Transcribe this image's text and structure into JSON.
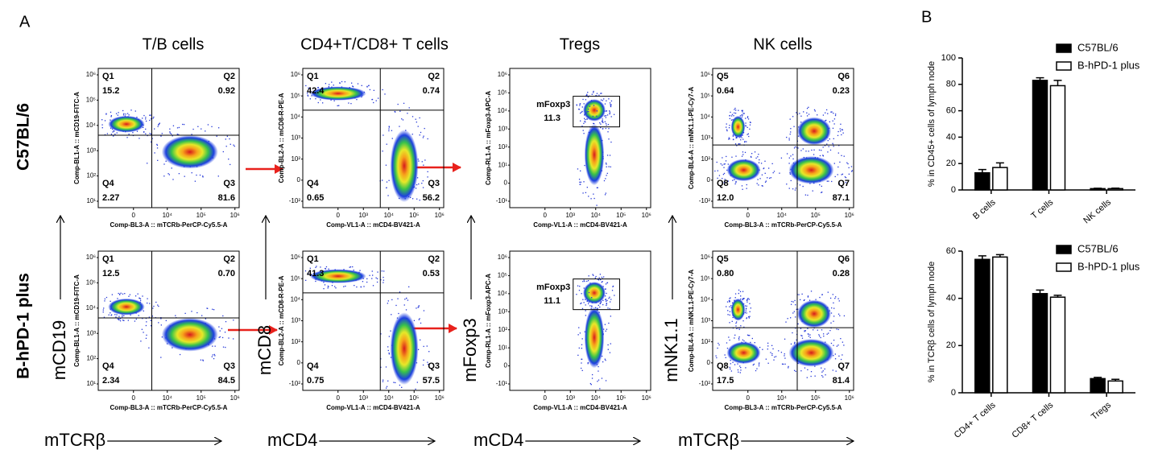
{
  "panel_a": {
    "label": "A",
    "row_labels": [
      "C57BL/6",
      "B-hPD-1 plus"
    ],
    "column_titles": [
      "T/B cells",
      "CD4+T/CD8+ T cells",
      "Tregs",
      "NK cells"
    ],
    "marker_axes": [
      {
        "y": "mCD19",
        "x": "mTCRβ"
      },
      {
        "y": "mCD8",
        "x": "mCD4"
      },
      {
        "y": "mFoxp3",
        "x": "mCD4"
      },
      {
        "y": "mNK1.1",
        "x": "mTCRβ"
      }
    ],
    "columns": [
      {
        "x_channel": "Comp-BL3-A :: mTCRb-PerCP-Cy5.5-A",
        "y_channel": "Comp-BL1-A :: mCD19-FITC-A",
        "xticks": [
          "0",
          "10⁴",
          "10⁵",
          "10⁶"
        ],
        "yticks": [
          "10⁶",
          "10⁵",
          "10⁴",
          "10³",
          "10²",
          "10¹"
        ]
      },
      {
        "x_channel": "Comp-VL1-A :: mCD4-BV421-A",
        "y_channel": "Comp-BL2-A :: mCD8-R-PE-A",
        "xticks": [
          "0",
          "10³",
          "10⁴",
          "10⁵",
          "10⁶"
        ],
        "yticks": [
          "10⁶",
          "10⁵",
          "10⁴",
          "10³",
          "10²",
          "0",
          "-10²"
        ]
      },
      {
        "x_channel": "Comp-VL1-A :: mCD4-BV421-A",
        "y_channel": "Comp-RL1-A :: mFoxp3-APC-A",
        "xticks": [
          "0",
          "10³",
          "10⁴",
          "10⁵",
          "10⁶"
        ],
        "yticks": [
          "10⁶",
          "10⁵",
          "10⁴",
          "10³",
          "10²",
          "10¹",
          "0",
          "-10¹"
        ]
      },
      {
        "x_channel": "Comp-BL3-A :: mTCRb-PerCP-Cy5.5-A",
        "y_channel": "Comp-BL4-A :: mNK1.1-PE-Cy7-A",
        "xticks": [
          "0",
          "10⁴",
          "10⁵",
          "10⁶"
        ],
        "yticks": [
          "10⁶",
          "10⁵",
          "10⁴",
          "10³",
          "10²",
          "0",
          "-10²"
        ]
      }
    ],
    "plots": [
      [
        {
          "quadrants": [
            {
              "name": "Q1",
              "value": "15.2"
            },
            {
              "name": "Q2",
              "value": "0.92"
            },
            {
              "name": "Q4",
              "value": "2.27"
            },
            {
              "name": "Q3",
              "value": "81.6"
            }
          ]
        },
        {
          "quadrants": [
            {
              "name": "Q1",
              "value": "42.4"
            },
            {
              "name": "Q2",
              "value": "0.74"
            },
            {
              "name": "Q4",
              "value": "0.65"
            },
            {
              "name": "Q3",
              "value": "56.2"
            }
          ]
        },
        {
          "gate": {
            "name": "mFoxp3",
            "value": "11.3"
          }
        },
        {
          "quadrants": [
            {
              "name": "Q5",
              "value": "0.64"
            },
            {
              "name": "Q6",
              "value": "0.23"
            },
            {
              "name": "Q8",
              "value": "12.0"
            },
            {
              "name": "Q7",
              "value": "87.1"
            }
          ]
        }
      ],
      [
        {
          "quadrants": [
            {
              "name": "Q1",
              "value": "12.5"
            },
            {
              "name": "Q2",
              "value": "0.70"
            },
            {
              "name": "Q4",
              "value": "2.34"
            },
            {
              "name": "Q3",
              "value": "84.5"
            }
          ]
        },
        {
          "quadrants": [
            {
              "name": "Q1",
              "value": "41.3"
            },
            {
              "name": "Q2",
              "value": "0.53"
            },
            {
              "name": "Q4",
              "value": "0.75"
            },
            {
              "name": "Q3",
              "value": "57.5"
            }
          ]
        },
        {
          "gate": {
            "name": "mFoxp3",
            "value": "11.1"
          }
        },
        {
          "quadrants": [
            {
              "name": "Q5",
              "value": "0.80"
            },
            {
              "name": "Q6",
              "value": "0.28"
            },
            {
              "name": "Q8",
              "value": "17.5"
            },
            {
              "name": "Q7",
              "value": "81.4"
            }
          ]
        }
      ]
    ]
  },
  "panel_b_label": "B",
  "chart_data": [
    {
      "type": "bar",
      "y_label": "% in CD45+ cells of lymph node",
      "categories": [
        "B cells",
        "T cells",
        "NK cells"
      ],
      "series": [
        {
          "name": "C57BL/6",
          "color": "#000000",
          "values": [
            13,
            83,
            1
          ],
          "errors": [
            2.5,
            2,
            0.3
          ]
        },
        {
          "name": "B-hPD-1 plus",
          "color": "#ffffff",
          "values": [
            17,
            79,
            1
          ],
          "errors": [
            3.5,
            4,
            0.4
          ]
        }
      ],
      "ylim": [
        0,
        100
      ],
      "yticks": [
        0,
        20,
        40,
        60,
        80,
        100
      ],
      "legend": "top-right"
    },
    {
      "type": "bar",
      "y_label": "% in TCRβ cells of lymph node",
      "categories": [
        "CD4+ T cells",
        "CD8+ T cells",
        "Tregs"
      ],
      "series": [
        {
          "name": "C57BL/6",
          "color": "#000000",
          "values": [
            56.5,
            42,
            6
          ],
          "errors": [
            1.5,
            1.5,
            0.5
          ]
        },
        {
          "name": "B-hPD-1 plus",
          "color": "#ffffff",
          "values": [
            57.5,
            40.5,
            5
          ],
          "errors": [
            1,
            0.8,
            0.7
          ]
        }
      ],
      "ylim": [
        0,
        60
      ],
      "yticks": [
        0,
        20,
        40,
        60
      ],
      "legend": "top-right"
    }
  ]
}
